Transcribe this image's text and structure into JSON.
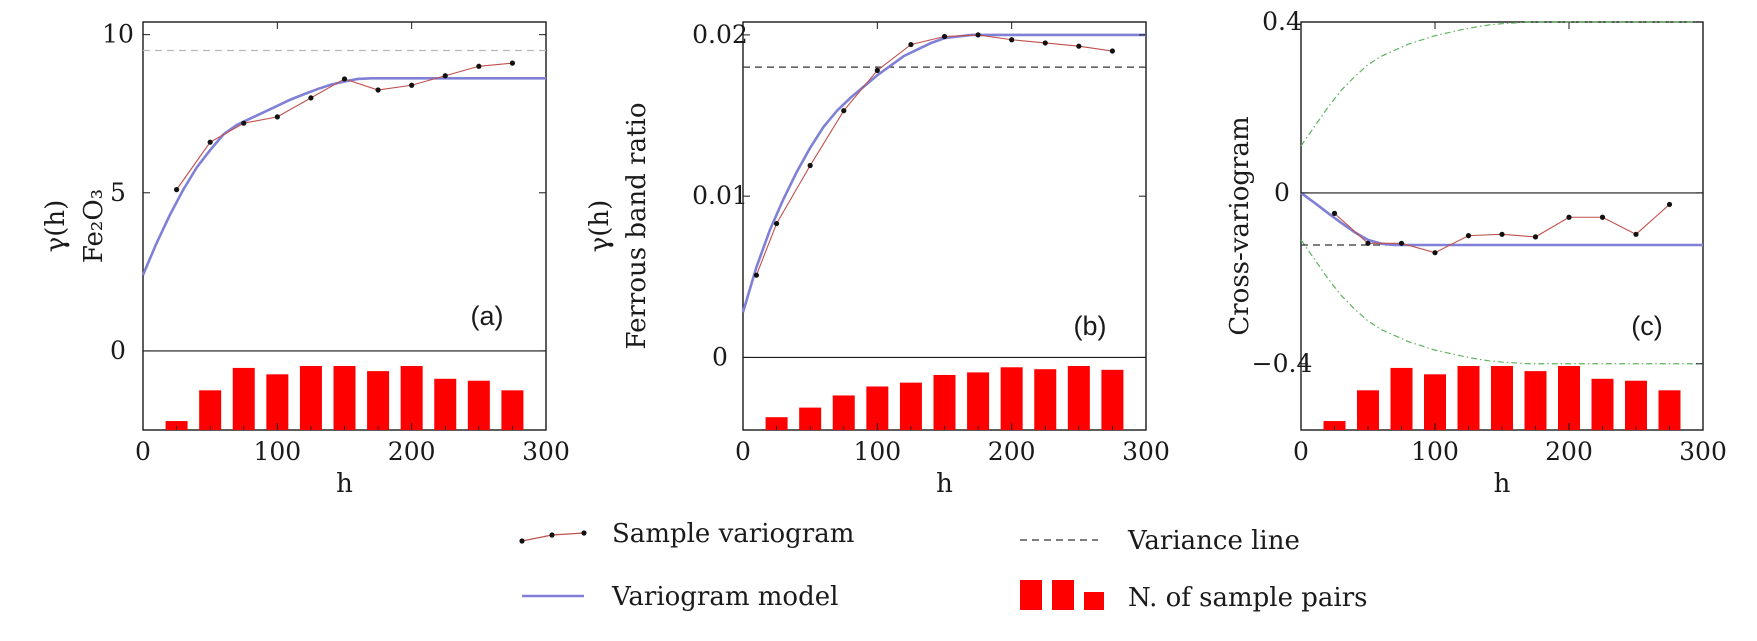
{
  "chart_data": [
    {
      "type": "line",
      "panel_label": "(a)",
      "ylabel_lines": [
        "γ(h)",
        "Fe₂O₃"
      ],
      "xlabel": "h",
      "xlim": [
        0,
        300
      ],
      "ylim": [
        -2.5,
        10.4
      ],
      "xticks": [
        0,
        100,
        200,
        300
      ],
      "xtick_labels": [
        "0",
        "100",
        "200",
        "300"
      ],
      "yticks": [
        0,
        5,
        10
      ],
      "ytick_labels": [
        "0",
        "5",
        "10"
      ],
      "sample_variogram": {
        "x": [
          25,
          50,
          75,
          100,
          125,
          150,
          175,
          200,
          225,
          250,
          275
        ],
        "y": [
          5.1,
          6.6,
          7.2,
          7.4,
          8.0,
          8.6,
          8.25,
          8.4,
          8.7,
          9.0,
          9.1
        ]
      },
      "variogram_model": {
        "x": [
          0,
          10,
          20,
          30,
          40,
          50,
          60,
          70,
          80,
          90,
          100,
          110,
          120,
          130,
          140,
          150,
          160,
          170,
          180,
          190,
          200,
          250,
          300
        ],
        "y": [
          2.4,
          3.4,
          4.3,
          5.1,
          5.8,
          6.35,
          6.85,
          7.15,
          7.35,
          7.55,
          7.75,
          7.95,
          8.12,
          8.28,
          8.42,
          8.52,
          8.6,
          8.62,
          8.62,
          8.62,
          8.62,
          8.62,
          8.62
        ]
      },
      "variance_line": 9.5,
      "pairs": {
        "x": [
          25,
          50,
          75,
          100,
          125,
          150,
          175,
          200,
          225,
          250,
          275
        ],
        "relative_height": [
          0.14,
          0.62,
          0.97,
          0.87,
          1.0,
          1.0,
          0.92,
          1.0,
          0.8,
          0.77,
          0.62
        ]
      }
    },
    {
      "type": "line",
      "panel_label": "(b)",
      "ylabel_lines": [
        "γ(h)",
        "Ferrous band ratio"
      ],
      "xlabel": "h",
      "xlim": [
        0,
        300
      ],
      "ylim": [
        -0.0045,
        0.0208
      ],
      "xticks": [
        0,
        100,
        200,
        300
      ],
      "xtick_labels": [
        "0",
        "100",
        "200",
        "300"
      ],
      "yticks": [
        0,
        0.01,
        0.02
      ],
      "ytick_labels": [
        "0",
        "0.01",
        "0.02"
      ],
      "sample_variogram": {
        "x": [
          10,
          25,
          50,
          75,
          100,
          125,
          150,
          175,
          200,
          225,
          250,
          275
        ],
        "y": [
          0.0051,
          0.0083,
          0.0119,
          0.0153,
          0.0178,
          0.0194,
          0.0199,
          0.02,
          0.0197,
          0.0195,
          0.0193,
          0.019
        ]
      },
      "variogram_model": {
        "x": [
          0,
          10,
          20,
          30,
          40,
          50,
          60,
          70,
          80,
          90,
          100,
          110,
          120,
          130,
          140,
          150,
          160,
          170,
          180,
          190,
          200,
          250,
          300
        ],
        "y": [
          0.0028,
          0.0056,
          0.0079,
          0.0098,
          0.0115,
          0.013,
          0.0143,
          0.0153,
          0.0161,
          0.0168,
          0.0175,
          0.0181,
          0.0187,
          0.0191,
          0.0195,
          0.0198,
          0.0199,
          0.02,
          0.02,
          0.02,
          0.02,
          0.02,
          0.02
        ]
      },
      "variance_line": 0.018,
      "pairs": {
        "x": [
          25,
          50,
          75,
          100,
          125,
          150,
          175,
          200,
          225,
          250,
          275
        ],
        "relative_height": [
          0.2,
          0.35,
          0.54,
          0.68,
          0.74,
          0.86,
          0.9,
          0.98,
          0.95,
          1.0,
          0.94
        ]
      }
    },
    {
      "type": "line",
      "panel_label": "(c)",
      "ylabel_lines": [
        "Cross-variogram"
      ],
      "xlabel": "h",
      "xlim": [
        0,
        300
      ],
      "ylim": [
        -0.555,
        0.4
      ],
      "xticks": [
        0,
        100,
        200,
        300
      ],
      "xtick_labels": [
        "0",
        "100",
        "200",
        "300"
      ],
      "yticks": [
        -0.4,
        0,
        0.4
      ],
      "ytick_labels": [
        "−0.4",
        "0",
        "0.4"
      ],
      "sample_variogram": {
        "x": [
          25,
          50,
          75,
          100,
          125,
          150,
          175,
          200,
          225,
          250,
          275
        ],
        "y": [
          -0.048,
          -0.118,
          -0.118,
          -0.14,
          -0.1,
          -0.097,
          -0.103,
          -0.057,
          -0.057,
          -0.097,
          -0.027
        ]
      },
      "variogram_model": {
        "x": [
          0,
          10,
          20,
          30,
          40,
          50,
          60,
          70,
          80,
          90,
          100,
          150,
          200,
          250,
          300
        ],
        "y": [
          0,
          -0.023,
          -0.047,
          -0.07,
          -0.092,
          -0.11,
          -0.119,
          -0.122,
          -0.122,
          -0.122,
          -0.122,
          -0.122,
          -0.122,
          -0.122,
          -0.122
        ]
      },
      "variance_line": -0.122,
      "envelope": {
        "x": [
          0,
          10,
          20,
          30,
          40,
          50,
          60,
          70,
          80,
          90,
          100,
          110,
          120,
          130,
          140,
          150,
          160,
          170,
          180,
          190,
          200,
          250,
          300
        ],
        "upper": [
          0.11,
          0.155,
          0.2,
          0.24,
          0.272,
          0.3,
          0.32,
          0.334,
          0.348,
          0.358,
          0.368,
          0.375,
          0.382,
          0.388,
          0.393,
          0.396,
          0.398,
          0.4,
          0.4,
          0.4,
          0.4,
          0.4,
          0.4
        ],
        "lower": [
          -0.11,
          -0.155,
          -0.2,
          -0.24,
          -0.272,
          -0.3,
          -0.32,
          -0.334,
          -0.348,
          -0.358,
          -0.368,
          -0.375,
          -0.382,
          -0.388,
          -0.393,
          -0.396,
          -0.398,
          -0.4,
          -0.4,
          -0.4,
          -0.4,
          -0.4,
          -0.4
        ]
      },
      "pairs": {
        "x": [
          25,
          50,
          75,
          100,
          125,
          150,
          175,
          200,
          225,
          250,
          275
        ],
        "relative_height": [
          0.14,
          0.62,
          0.97,
          0.87,
          1.0,
          1.0,
          0.92,
          1.0,
          0.8,
          0.77,
          0.62
        ]
      }
    }
  ],
  "legend": {
    "sample_variogram": "Sample variogram",
    "variogram_model": "Variogram  model",
    "variance_line": "Variance line",
    "pairs": "N. of sample pairs"
  },
  "colors": {
    "sample_line": "#c0504d",
    "sample_dot": "#111111",
    "model": "#7f80d6",
    "variance": "#333333",
    "variance_a": "#b8b8b8",
    "envelope": "#5fb35f",
    "bars": "#ff0000",
    "axis": "#1a1a1a"
  }
}
